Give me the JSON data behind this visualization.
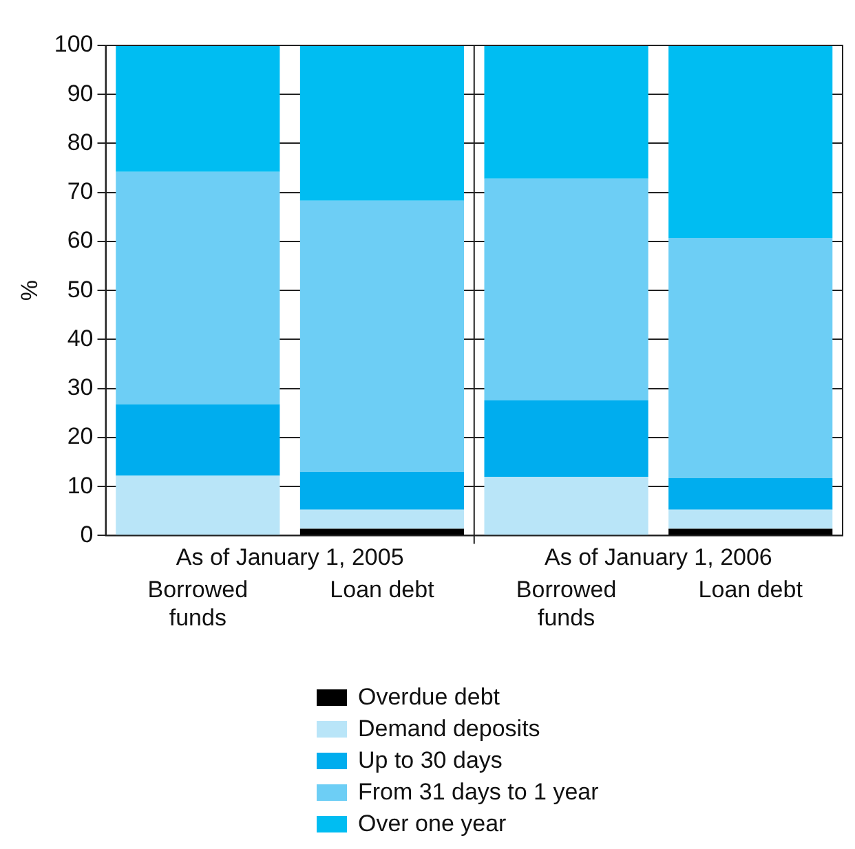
{
  "chart_data": {
    "type": "bar",
    "stacked": true,
    "ylabel": "%",
    "categories": [
      "Borrowed funds",
      "Loan debt",
      "Borrowed funds",
      "Loan debt"
    ],
    "annotations": [
      "As of January 1, 2005",
      "As of January 1, 2006"
    ],
    "series": [
      {
        "name": "Overdue debt",
        "color": "#000000",
        "values": [
          0,
          1.4,
          0,
          1.4
        ]
      },
      {
        "name": "Demand deposits",
        "color": "#b9e5f8",
        "values": [
          12.2,
          3.9,
          12,
          3.9
        ]
      },
      {
        "name": "Up to 30 days",
        "color": "#00adee",
        "values": [
          14.6,
          7.7,
          15.6,
          6.4
        ]
      },
      {
        "name": "From 31 days to 1 year",
        "color": "#6dcef5",
        "values": [
          47.4,
          55.3,
          45.2,
          49
        ]
      },
      {
        "name": "Over one year",
        "color": "#00bdf2",
        "values": [
          25.8,
          31.7,
          27.2,
          39.3
        ]
      }
    ],
    "ylim": [
      0,
      100
    ],
    "yticks": [
      0,
      10,
      20,
      30,
      40,
      50,
      60,
      70,
      80,
      90,
      100
    ],
    "grid": "y",
    "legend": "bottom"
  }
}
